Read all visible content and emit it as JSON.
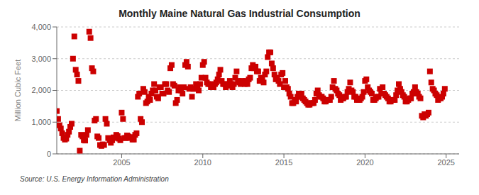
{
  "chart_data": {
    "type": "scatter",
    "title": "Monthly Maine Natural Gas Industrial Consumption",
    "y_label": "Million Cubic Feet",
    "annotations": [
      "Source: U.S. Energy Information Administration"
    ],
    "color": "#cc0000",
    "marker": "square",
    "grid": true,
    "xlim": [
      2001.0,
      2025.8
    ],
    "xticks": [
      2005,
      2010,
      2015,
      2020,
      2025
    ],
    "ylim": [
      0,
      4000
    ],
    "yticks": [
      0,
      {
        "value": 1000,
        "label": "1,000"
      },
      {
        "value": 2000,
        "label": "2,000"
      },
      {
        "value": 3000,
        "label": "3,000"
      },
      {
        "value": 4000,
        "label": "4,000"
      }
    ],
    "x": [
      2001.0,
      2001.083,
      2001.167,
      2001.25,
      2001.333,
      2001.417,
      2001.5,
      2001.583,
      2001.667,
      2001.75,
      2001.833,
      2001.917,
      2002.0,
      2002.083,
      2002.167,
      2002.25,
      2002.333,
      2002.417,
      2002.5,
      2002.583,
      2002.667,
      2002.75,
      2002.833,
      2002.917,
      2003.0,
      2003.083,
      2003.167,
      2003.25,
      2003.333,
      2003.417,
      2003.5,
      2003.583,
      2003.667,
      2003.75,
      2003.833,
      2003.917,
      2004.0,
      2004.083,
      2004.167,
      2004.25,
      2004.333,
      2004.417,
      2004.5,
      2004.583,
      2004.667,
      2004.75,
      2004.833,
      2004.917,
      2005.0,
      2005.083,
      2005.167,
      2005.25,
      2005.333,
      2005.417,
      2005.5,
      2005.583,
      2005.667,
      2005.75,
      2005.833,
      2005.917,
      2006.0,
      2006.083,
      2006.167,
      2006.25,
      2006.333,
      2006.417,
      2006.5,
      2006.583,
      2006.667,
      2006.75,
      2006.833,
      2006.917,
      2007.0,
      2007.083,
      2007.167,
      2007.25,
      2007.333,
      2007.417,
      2007.5,
      2007.583,
      2007.667,
      2007.75,
      2007.833,
      2007.917,
      2008.0,
      2008.083,
      2008.167,
      2008.25,
      2008.333,
      2008.417,
      2008.5,
      2008.583,
      2008.667,
      2008.75,
      2008.833,
      2008.917,
      2009.0,
      2009.083,
      2009.167,
      2009.25,
      2009.333,
      2009.417,
      2009.5,
      2009.583,
      2009.667,
      2009.75,
      2009.833,
      2009.917,
      2010.0,
      2010.083,
      2010.167,
      2010.25,
      2010.333,
      2010.417,
      2010.5,
      2010.583,
      2010.667,
      2010.75,
      2010.833,
      2010.917,
      2011.0,
      2011.083,
      2011.167,
      2011.25,
      2011.333,
      2011.417,
      2011.5,
      2011.583,
      2011.667,
      2011.75,
      2011.833,
      2011.917,
      2012.0,
      2012.083,
      2012.167,
      2012.25,
      2012.333,
      2012.417,
      2012.5,
      2012.583,
      2012.667,
      2012.75,
      2012.833,
      2012.917,
      2013.0,
      2013.083,
      2013.167,
      2013.25,
      2013.333,
      2013.417,
      2013.5,
      2013.583,
      2013.667,
      2013.75,
      2013.833,
      2013.917,
      2014.0,
      2014.083,
      2014.167,
      2014.25,
      2014.333,
      2014.417,
      2014.5,
      2014.583,
      2014.667,
      2014.75,
      2014.833,
      2014.917,
      2015.0,
      2015.083,
      2015.167,
      2015.25,
      2015.333,
      2015.417,
      2015.5,
      2015.583,
      2015.667,
      2015.75,
      2015.833,
      2015.917,
      2016.0,
      2016.083,
      2016.167,
      2016.25,
      2016.333,
      2016.417,
      2016.5,
      2016.583,
      2016.667,
      2016.75,
      2016.833,
      2016.917,
      2017.0,
      2017.083,
      2017.167,
      2017.25,
      2017.333,
      2017.417,
      2017.5,
      2017.583,
      2017.667,
      2017.75,
      2017.833,
      2017.917,
      2018.0,
      2018.083,
      2018.167,
      2018.25,
      2018.333,
      2018.417,
      2018.5,
      2018.583,
      2018.667,
      2018.75,
      2018.833,
      2018.917,
      2019.0,
      2019.083,
      2019.167,
      2019.25,
      2019.333,
      2019.417,
      2019.5,
      2019.583,
      2019.667,
      2019.75,
      2019.833,
      2019.917,
      2020.0,
      2020.083,
      2020.167,
      2020.25,
      2020.333,
      2020.417,
      2020.5,
      2020.583,
      2020.667,
      2020.75,
      2020.833,
      2020.917,
      2021.0,
      2021.083,
      2021.167,
      2021.25,
      2021.333,
      2021.417,
      2021.5,
      2021.583,
      2021.667,
      2021.75,
      2021.833,
      2021.917,
      2022.0,
      2022.083,
      2022.167,
      2022.25,
      2022.333,
      2022.417,
      2022.5,
      2022.583,
      2022.667,
      2022.75,
      2022.833,
      2022.917,
      2023.0,
      2023.083,
      2023.167,
      2023.25,
      2023.333,
      2023.417,
      2023.5,
      2023.583,
      2023.667,
      2023.75,
      2023.833,
      2023.917,
      2024.0,
      2024.083,
      2024.167,
      2024.25,
      2024.333,
      2024.417,
      2024.5,
      2024.583,
      2024.667,
      2024.75,
      2024.833,
      2024.917
    ],
    "values": [
      1350,
      1100,
      900,
      800,
      650,
      500,
      450,
      480,
      600,
      700,
      850,
      950,
      3000,
      3700,
      2650,
      2500,
      2300,
      100,
      600,
      550,
      430,
      420,
      600,
      750,
      3850,
      3650,
      2700,
      2600,
      1050,
      1100,
      550,
      500,
      280,
      250,
      300,
      280,
      1100,
      950,
      500,
      430,
      350,
      430,
      520,
      500,
      600,
      560,
      480,
      430,
      1300,
      1100,
      500,
      500,
      580,
      550,
      500,
      530,
      450,
      450,
      600,
      650,
      1800,
      1900,
      1100,
      1000,
      2050,
      1950,
      1600,
      1650,
      1800,
      1700,
      1900,
      2000,
      2200,
      2000,
      1800,
      1750,
      2100,
      2100,
      1900,
      1900,
      2200,
      2200,
      2000,
      1950,
      2700,
      2800,
      2200,
      2150,
      1600,
      1700,
      2000,
      2100,
      2000,
      1900,
      2100,
      2800,
      2900,
      2750,
      2050,
      2100,
      1800,
      2050,
      2050,
      2200,
      2100,
      2000,
      2200,
      2400,
      2800,
      2900,
      2400,
      2250,
      2200,
      2200,
      2100,
      2150,
      2100,
      2200,
      2250,
      2350,
      2500,
      2650,
      2300,
      2200,
      2200,
      2100,
      2150,
      2200,
      2300,
      2200,
      2100,
      2200,
      2400,
      2600,
      2300,
      2250,
      2200,
      2300,
      2250,
      2200,
      2300,
      2200,
      2350,
      2400,
      2700,
      2800,
      2700,
      2750,
      2600,
      2600,
      2300,
      2400,
      2350,
      2250,
      2500,
      2600,
      3050,
      3200,
      3200,
      2850,
      2700,
      2500,
      2350,
      2400,
      2300,
      2200,
      2500,
      2550,
      2100,
      2300,
      2100,
      2050,
      1900,
      1800,
      1600,
      1600,
      1700,
      1650,
      1800,
      1900,
      1800,
      1900,
      1750,
      1700,
      1650,
      1600,
      1550,
      1550,
      1600,
      1600,
      1600,
      1700,
      1900,
      2000,
      1850,
      1800,
      1800,
      1750,
      1650,
      1650,
      1700,
      1700,
      1700,
      1800,
      2100,
      2300,
      2050,
      2000,
      1900,
      1850,
      1700,
      1750,
      1750,
      1800,
      1800,
      1950,
      2050,
      2250,
      2000,
      1950,
      1800,
      1800,
      1700,
      1700,
      1700,
      1750,
      1800,
      1950,
      2300,
      2350,
      2100,
      2000,
      1950,
      1900,
      1700,
      1700,
      1750,
      1800,
      1800,
      2050,
      1900,
      2100,
      1900,
      1850,
      1800,
      1750,
      1650,
      1650,
      1700,
      1700,
      1700,
      1850,
      2000,
      2200,
      2050,
      1950,
      1850,
      1800,
      1650,
      1650,
      1700,
      1750,
      1750,
      1900,
      1950,
      2100,
      1950,
      1900,
      1800,
      1750,
      1200,
      1150,
      1250,
      1200,
      1250,
      1300,
      2600,
      2250,
      2050,
      2000,
      1900,
      1850,
      1700,
      1750,
      1750,
      1800,
      1900,
      2050
    ]
  }
}
